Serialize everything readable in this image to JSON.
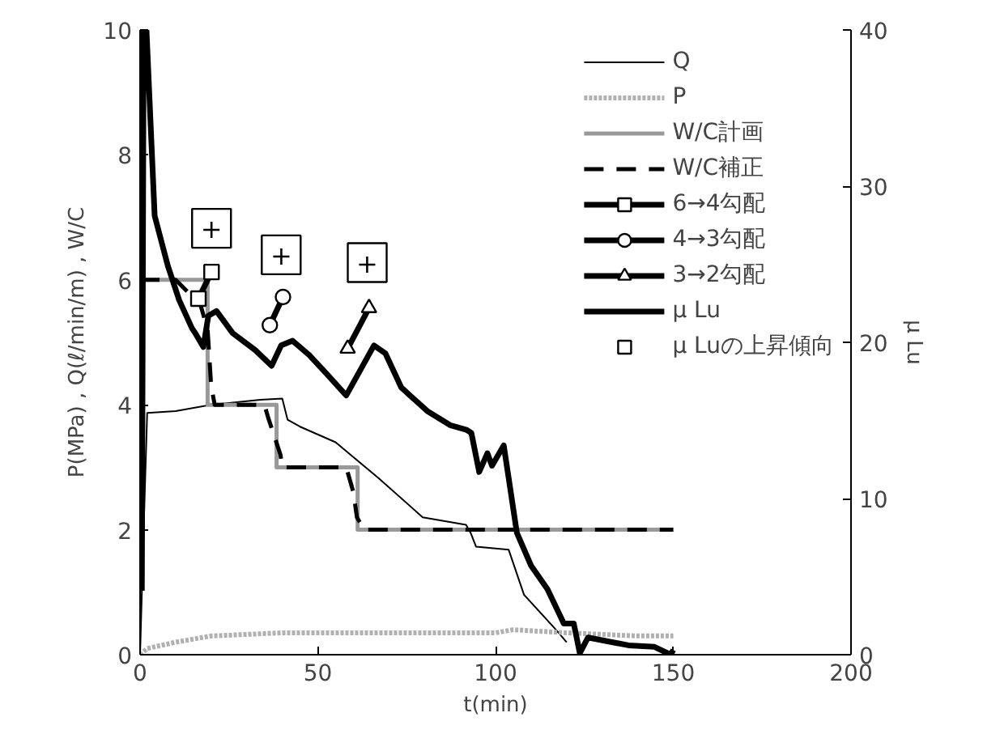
{
  "chart_data": {
    "type": "line",
    "xlabel": "t(min)",
    "ylabel": "P(MPa) , Q(ℓ/min/m) , W/C",
    "y2label": "μ Lu",
    "xlim": [
      0,
      200
    ],
    "xticks": [
      0,
      50,
      100,
      150,
      200
    ],
    "ylim": [
      0,
      10
    ],
    "yticks": [
      0,
      2,
      4,
      6,
      8,
      10
    ],
    "y2lim": [
      0,
      40
    ],
    "y2ticks": [
      0,
      10,
      20,
      30,
      40
    ],
    "grid": false,
    "legend": "top right",
    "annotations": [
      {
        "text": "+",
        "x": 20.1,
        "y": 6.825
      },
      {
        "text": "+",
        "x": 39.7,
        "y": 6.4
      },
      {
        "text": "+",
        "x": 63.9,
        "y": 6.275
      }
    ],
    "series": [
      {
        "name": "Q",
        "color": "#000000",
        "line_style": "solid",
        "marker": "none",
        "x": [
          0,
          1,
          2,
          10,
          20,
          33.8,
          40,
          41.5,
          45,
          55,
          67,
          79.5,
          91.7,
          93,
          94.5,
          103.7,
          108,
          117,
          120
        ],
        "values": [
          0,
          2,
          3.87,
          3.9,
          4.0,
          4.08,
          4.1,
          3.76,
          3.65,
          3.4,
          2.83,
          2.2,
          2.08,
          1.95,
          1.73,
          1.68,
          0.96,
          0.4,
          0.2
        ]
      },
      {
        "name": "P",
        "color": "#b0b0b0",
        "line_style": "dotted",
        "marker": "none",
        "x": [
          0,
          2,
          10,
          20,
          40,
          60,
          80,
          100,
          105,
          120,
          140,
          150
        ],
        "values": [
          0,
          0.1,
          0.2,
          0.3,
          0.35,
          0.35,
          0.35,
          0.35,
          0.4,
          0.35,
          0.3,
          0.3
        ]
      },
      {
        "name": "W/C計画",
        "color": "#999999",
        "line_style": "solid",
        "marker": "none",
        "x": [
          0,
          19,
          19,
          38.4,
          38.4,
          61.2,
          61.2,
          150
        ],
        "values": [
          6,
          6,
          4,
          4,
          3,
          3,
          2,
          2
        ]
      },
      {
        "name": "W/C補正",
        "color": "#000000",
        "line_style": "dashed",
        "marker": "none",
        "x": [
          0,
          10,
          17,
          19,
          20,
          21,
          35,
          36,
          39.5,
          40,
          58,
          60,
          61,
          63,
          150
        ],
        "values": [
          6,
          6,
          5.6,
          5.2,
          4.3,
          4.0,
          4.0,
          3.8,
          3.2,
          3.0,
          3.0,
          2.6,
          2.2,
          2.0,
          2.0
        ]
      },
      {
        "name": "6→4勾配",
        "color": "#000000",
        "line_style": "solid",
        "marker": "square",
        "axis": "y2",
        "x": [
          16.4,
          20.1
        ],
        "values": [
          22.8,
          24.5
        ]
      },
      {
        "name": "4→3勾配",
        "color": "#000000",
        "line_style": "solid",
        "marker": "circle",
        "axis": "y2",
        "x": [
          36.5,
          40.2
        ],
        "values": [
          21.1,
          22.9
        ]
      },
      {
        "name": "3→2勾配",
        "color": "#000000",
        "line_style": "solid",
        "marker": "triangle",
        "axis": "y2",
        "x": [
          58.4,
          64.4
        ],
        "values": [
          19.6,
          22.2
        ]
      },
      {
        "name": "μ Lu",
        "color": "#000000",
        "line_style": "solid",
        "marker": "none",
        "axis": "y2",
        "x": [
          0.5,
          1,
          1.8,
          4.1,
          7.8,
          11,
          14.6,
          15.5,
          17.8,
          19.2,
          21.5,
          26,
          32.4,
          37,
          39.7,
          42.9,
          47.5,
          52,
          58,
          65.8,
          69,
          73.5,
          80.8,
          87.2,
          91.8,
          93.2,
          95.4,
          97.7,
          99,
          102.3,
          103.7,
          106,
          110,
          114.6,
          119.2,
          122,
          123.7,
          126,
          137.4,
          144.7,
          149.3,
          150
        ],
        "values": [
          4.1,
          40,
          40,
          28.1,
          24.9,
          22.7,
          20.9,
          20.6,
          19.7,
          21.7,
          22.0,
          20.6,
          19.5,
          18.5,
          19.8,
          20.1,
          19.2,
          18.1,
          16.6,
          19.8,
          19.3,
          17.1,
          15.6,
          14.7,
          14.4,
          14.2,
          11.7,
          12.9,
          12.1,
          13.4,
          11.3,
          7.8,
          5.7,
          4.2,
          2.0,
          2.0,
          0.1,
          1.1,
          0.6,
          0.5,
          0,
          0.3
        ]
      },
      {
        "name": "μ Luの上昇傾向",
        "type": "scatter",
        "color": "#000000",
        "marker": "square",
        "axis": "y2",
        "x": [
          20.1,
          39.7,
          63.9
        ],
        "values": [
          27.3,
          25.6,
          25.1
        ]
      }
    ]
  }
}
